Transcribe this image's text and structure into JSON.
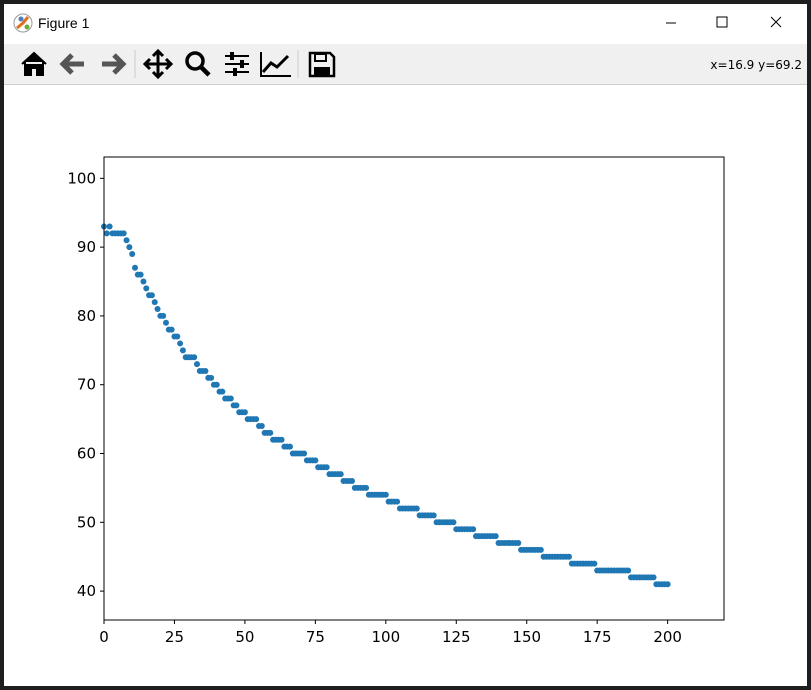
{
  "window": {
    "title": "Figure 1"
  },
  "toolbar": {
    "coordinates": "x=16.9 y=69.2"
  },
  "chart_data": {
    "type": "scatter",
    "color": "#1f77b4",
    "x": [
      0,
      1,
      2,
      3,
      4,
      5,
      6,
      7,
      8,
      9,
      10,
      11,
      12,
      13,
      14,
      15,
      16,
      17,
      18,
      19,
      20,
      21,
      22,
      23,
      24,
      25,
      26,
      27,
      28,
      29,
      30,
      31,
      32,
      33,
      34,
      35,
      36,
      37,
      38,
      39,
      40,
      41,
      42,
      43,
      44,
      45,
      46,
      47,
      48,
      49,
      50,
      51,
      52,
      53,
      54,
      55,
      56,
      57,
      58,
      59,
      60,
      61,
      62,
      63,
      64,
      65,
      66,
      67,
      68,
      69,
      70,
      71,
      72,
      73,
      74,
      75,
      76,
      77,
      78,
      79,
      80,
      81,
      82,
      83,
      84,
      85,
      86,
      87,
      88,
      89,
      90,
      91,
      92,
      93,
      94,
      95,
      96,
      97,
      98,
      99,
      100,
      101,
      102,
      103,
      104,
      105,
      106,
      107,
      108,
      109,
      110,
      111,
      112,
      113,
      114,
      115,
      116,
      117,
      118,
      119,
      120,
      121,
      122,
      123,
      124,
      125,
      126,
      127,
      128,
      129,
      130,
      131,
      132,
      133,
      134,
      135,
      136,
      137,
      138,
      139,
      140,
      141,
      142,
      143,
      144,
      145,
      146,
      147,
      148,
      149,
      150,
      151,
      152,
      153,
      154,
      155,
      156,
      157,
      158,
      159,
      160,
      161,
      162,
      163,
      164,
      165,
      166,
      167,
      168,
      169,
      170,
      171,
      172,
      173,
      174,
      175,
      176,
      177,
      178,
      179,
      180,
      181,
      182,
      183,
      184,
      185,
      186,
      187,
      188,
      189,
      190,
      191,
      192,
      193,
      194,
      195,
      196,
      197,
      198,
      199,
      200
    ],
    "values": [
      93,
      92,
      93,
      92,
      92,
      92,
      92,
      92,
      91,
      90,
      89,
      87,
      86,
      86,
      85,
      84,
      83,
      83,
      82,
      81,
      80,
      80,
      79,
      78,
      78,
      77,
      77,
      76,
      75,
      74,
      74,
      74,
      74,
      73,
      72,
      72,
      72,
      71,
      71,
      70,
      70,
      69,
      69,
      68,
      68,
      68,
      67,
      67,
      66,
      66,
      66,
      65,
      65,
      65,
      65,
      64,
      64,
      63,
      63,
      63,
      62,
      62,
      62,
      62,
      61,
      61,
      61,
      60,
      60,
      60,
      60,
      60,
      59,
      59,
      59,
      59,
      58,
      58,
      58,
      58,
      57,
      57,
      57,
      57,
      57,
      56,
      56,
      56,
      56,
      55,
      55,
      55,
      55,
      55,
      54,
      54,
      54,
      54,
      54,
      54,
      54,
      53,
      53,
      53,
      53,
      52,
      52,
      52,
      52,
      52,
      52,
      52,
      51,
      51,
      51,
      51,
      51,
      51,
      50,
      50,
      50,
      50,
      50,
      50,
      50,
      49,
      49,
      49,
      49,
      49,
      49,
      49,
      48,
      48,
      48,
      48,
      48,
      48,
      48,
      48,
      47,
      47,
      47,
      47,
      47,
      47,
      47,
      47,
      46,
      46,
      46,
      46,
      46,
      46,
      46,
      46,
      45,
      45,
      45,
      45,
      45,
      45,
      45,
      45,
      45,
      45,
      44,
      44,
      44,
      44,
      44,
      44,
      44,
      44,
      44,
      43,
      43,
      43,
      43,
      43,
      43,
      43,
      43,
      43,
      43,
      43,
      43,
      42,
      42,
      42,
      42,
      42,
      42,
      42,
      42,
      42,
      41,
      41,
      41,
      41,
      41
    ],
    "xlim": [
      0,
      220
    ],
    "xticks": [
      0,
      25,
      50,
      75,
      100,
      125,
      150,
      175,
      200
    ],
    "ylim": [
      35.8,
      103.1
    ],
    "yticks": [
      40,
      50,
      60,
      70,
      80,
      90,
      100
    ]
  }
}
